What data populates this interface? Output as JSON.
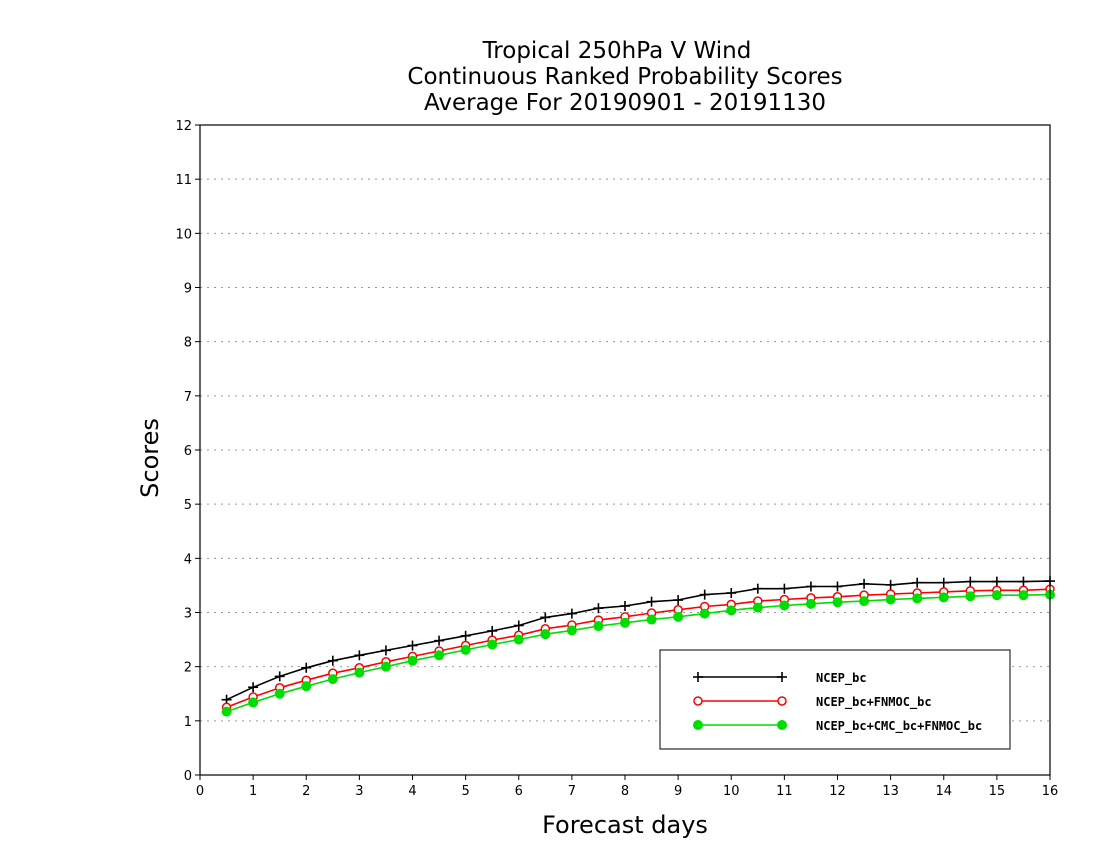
{
  "chart_data": {
    "type": "line",
    "title": [
      "Tropical 250hPa V Wind",
      "Continuous Ranked Probability Scores",
      "Average For 20190901 - 20191130"
    ],
    "xlabel": "Forecast days",
    "ylabel": "Scores",
    "xlim": [
      0,
      16
    ],
    "ylim": [
      0,
      12
    ],
    "xticks": [
      0,
      1,
      2,
      3,
      4,
      5,
      6,
      7,
      8,
      9,
      10,
      11,
      12,
      13,
      14,
      15,
      16
    ],
    "yticks": [
      0,
      1,
      2,
      3,
      4,
      5,
      6,
      7,
      8,
      9,
      10,
      11,
      12
    ],
    "grid": "horizontal dotted",
    "legend_position": "bottom-right",
    "x": [
      0.5,
      1,
      1.5,
      2,
      2.5,
      3,
      3.5,
      4,
      4.5,
      5,
      5.5,
      6,
      6.5,
      7,
      7.5,
      8,
      8.5,
      9,
      9.5,
      10,
      10.5,
      11,
      11.5,
      12,
      12.5,
      13,
      13.5,
      14,
      14.5,
      15,
      15.5,
      16
    ],
    "series": [
      {
        "name": "NCEP_bc",
        "color": "#000000",
        "marker": "plus",
        "values": [
          1.39,
          1.62,
          1.82,
          1.98,
          2.11,
          2.21,
          2.3,
          2.39,
          2.48,
          2.57,
          2.66,
          2.76,
          2.91,
          2.98,
          3.08,
          3.12,
          3.2,
          3.23,
          3.33,
          3.36,
          3.44,
          3.44,
          3.48,
          3.48,
          3.53,
          3.51,
          3.55,
          3.55,
          3.57,
          3.57,
          3.57,
          3.58
        ]
      },
      {
        "name": "NCEP_bc+FNMOC_bc",
        "color": "#ff0000",
        "marker": "open-circle",
        "values": [
          1.25,
          1.44,
          1.61,
          1.75,
          1.88,
          1.98,
          2.09,
          2.19,
          2.29,
          2.39,
          2.49,
          2.58,
          2.7,
          2.77,
          2.86,
          2.92,
          2.99,
          3.05,
          3.11,
          3.15,
          3.21,
          3.24,
          3.27,
          3.29,
          3.32,
          3.34,
          3.36,
          3.38,
          3.4,
          3.41,
          3.41,
          3.43
        ]
      },
      {
        "name": "NCEP_bc+CMC_bc+FNMOC_bc",
        "color": "#00dd00",
        "marker": "filled-circle",
        "values": [
          1.17,
          1.34,
          1.5,
          1.64,
          1.77,
          1.89,
          2.0,
          2.11,
          2.21,
          2.31,
          2.41,
          2.5,
          2.6,
          2.67,
          2.75,
          2.81,
          2.87,
          2.92,
          2.98,
          3.04,
          3.09,
          3.13,
          3.16,
          3.19,
          3.21,
          3.24,
          3.26,
          3.28,
          3.3,
          3.32,
          3.32,
          3.33
        ]
      }
    ]
  }
}
